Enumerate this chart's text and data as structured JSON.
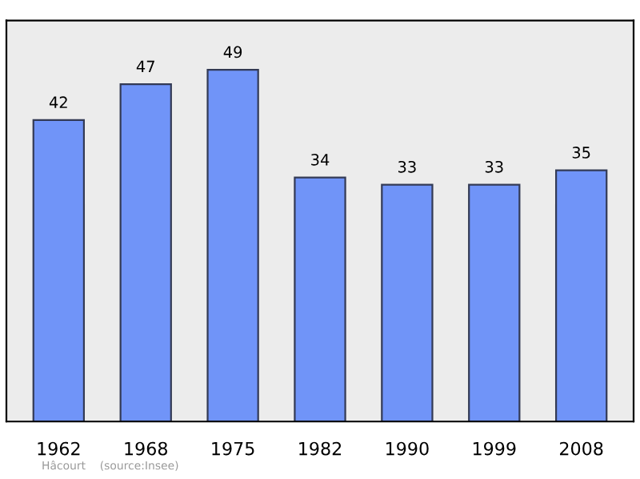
{
  "chart_data": {
    "type": "bar",
    "categories": [
      "1962",
      "1968",
      "1975",
      "1982",
      "1990",
      "1999",
      "2008"
    ],
    "values": [
      42,
      47,
      49,
      34,
      33,
      33,
      35
    ],
    "color": "#7094f8",
    "data_labels": true,
    "grid": false,
    "annotations": [
      "Hâcourt    (source:Insee)"
    ]
  }
}
